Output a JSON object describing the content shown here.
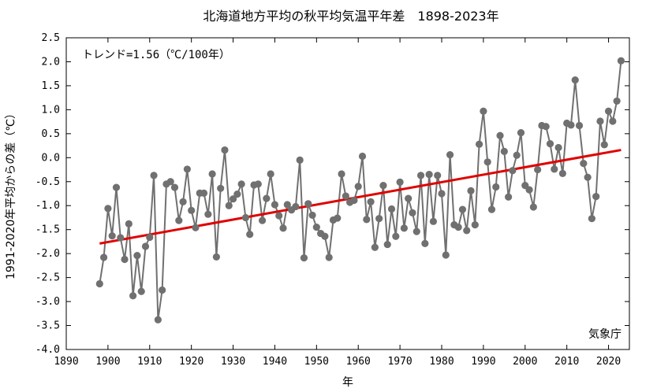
{
  "chart_data": {
    "type": "line",
    "title": "北海道地方平均の秋平均気温平年差　1898-2023年",
    "xlabel": "年",
    "ylabel": "1991-2020年平均からの差（℃）",
    "trend_label": "トレンド=1.56（℃/100年）",
    "source_label": "気象庁",
    "xlim": [
      1890,
      2025
    ],
    "ylim": [
      -4.0,
      2.5
    ],
    "xticks": [
      1890,
      1900,
      1910,
      1920,
      1930,
      1940,
      1950,
      1960,
      1970,
      1980,
      1990,
      2000,
      2010,
      2020
    ],
    "yticks": [
      "-4.0",
      "-3.5",
      "-3.0",
      "-2.5",
      "-2.0",
      "-1.5",
      "-1.0",
      "-0.5",
      "0.0",
      "0.5",
      "1.0",
      "1.5",
      "2.0",
      "2.5"
    ],
    "grid": false,
    "colors": {
      "series": "#707070",
      "trend": "#e00000",
      "axis": "#000000"
    },
    "series": [
      {
        "x_start": 1898,
        "values": [
          -2.63,
          -2.08,
          -1.06,
          -1.63,
          -0.62,
          -1.67,
          -2.12,
          -1.38,
          -2.88,
          -2.04,
          -2.79,
          -1.85,
          -1.66,
          -0.37,
          -3.38,
          -2.76,
          -0.55,
          -0.5,
          -0.62,
          -1.31,
          -0.92,
          -0.24,
          -1.1,
          -1.46,
          -0.74,
          -0.74,
          -1.18,
          -0.34,
          -2.07,
          -0.64,
          0.16,
          -1.0,
          -0.86,
          -0.76,
          -0.55,
          -1.25,
          -1.6,
          -0.57,
          -0.55,
          -1.31,
          -0.85,
          -0.34,
          -0.98,
          -1.21,
          -1.47,
          -0.98,
          -1.09,
          -1.02,
          -0.05,
          -2.09,
          -0.96,
          -1.2,
          -1.45,
          -1.58,
          -1.64,
          -2.08,
          -1.3,
          -1.26,
          -0.34,
          -0.8,
          -0.93,
          -0.89,
          -0.6,
          0.03,
          -1.29,
          -0.92,
          -1.87,
          -1.27,
          -0.58,
          -1.81,
          -1.07,
          -1.64,
          -0.51,
          -1.47,
          -0.85,
          -1.15,
          -1.54,
          -0.37,
          -1.79,
          -0.35,
          -1.33,
          -0.37,
          -0.75,
          -2.03,
          0.06,
          -1.4,
          -1.45,
          -1.08,
          -1.52,
          -0.69,
          -1.4,
          0.28,
          0.97,
          -0.09,
          -1.08,
          -0.61,
          0.46,
          0.13,
          -0.82,
          -0.27,
          0.05,
          0.52,
          -0.58,
          -0.67,
          -1.03,
          -0.25,
          0.67,
          0.65,
          0.29,
          -0.24,
          0.21,
          -0.33,
          0.72,
          0.68,
          1.62,
          0.67,
          -0.12,
          -0.41,
          -1.27,
          -0.81,
          0.76,
          0.27,
          0.97,
          0.76,
          1.18,
          2.02
        ]
      }
    ],
    "trend": {
      "x": [
        1898,
        2023
      ],
      "y": [
        -1.79,
        0.16
      ]
    }
  }
}
